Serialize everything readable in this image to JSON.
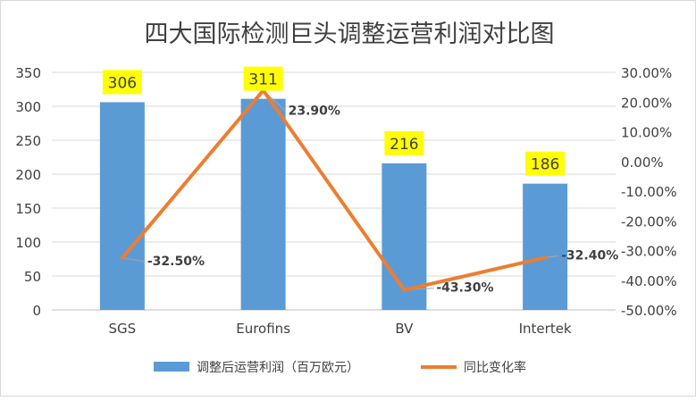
{
  "chart_data": {
    "type": "bar+line",
    "title": "四大国际检测巨头调整运营利润对比图",
    "categories": [
      "SGS",
      "Eurofins",
      "BV",
      "Intertek"
    ],
    "series": [
      {
        "name": "调整后运营利润（百万欧元）",
        "type": "bar",
        "axis": "left",
        "color": "#5b9bd5",
        "values": [
          306,
          311,
          216,
          186
        ],
        "labels": [
          "306",
          "311",
          "216",
          "186"
        ],
        "label_bg": "#ffff00"
      },
      {
        "name": "同比变化率",
        "type": "line",
        "axis": "right",
        "color": "#ed7d31",
        "values": [
          -32.5,
          23.9,
          -43.3,
          -32.4
        ],
        "labels": [
          "-32.50%",
          "23.90%",
          "-43.30%",
          "-32.40%"
        ]
      }
    ],
    "left_axis": {
      "range": [
        0,
        350
      ],
      "ticks": [
        0,
        50,
        100,
        150,
        200,
        250,
        300,
        350
      ],
      "tick_labels": [
        "0",
        "50",
        "100",
        "150",
        "200",
        "250",
        "300",
        "350"
      ]
    },
    "right_axis": {
      "range": [
        -50,
        30
      ],
      "ticks": [
        -50,
        -40,
        -30,
        -20,
        -10,
        0,
        10,
        20,
        30
      ],
      "tick_labels": [
        "-50.00%",
        "-40.00%",
        "-30.00%",
        "-20.00%",
        "-10.00%",
        "0.00%",
        "10.00%",
        "20.00%",
        "30.00%"
      ]
    },
    "grid": true,
    "legend_position": "bottom"
  }
}
